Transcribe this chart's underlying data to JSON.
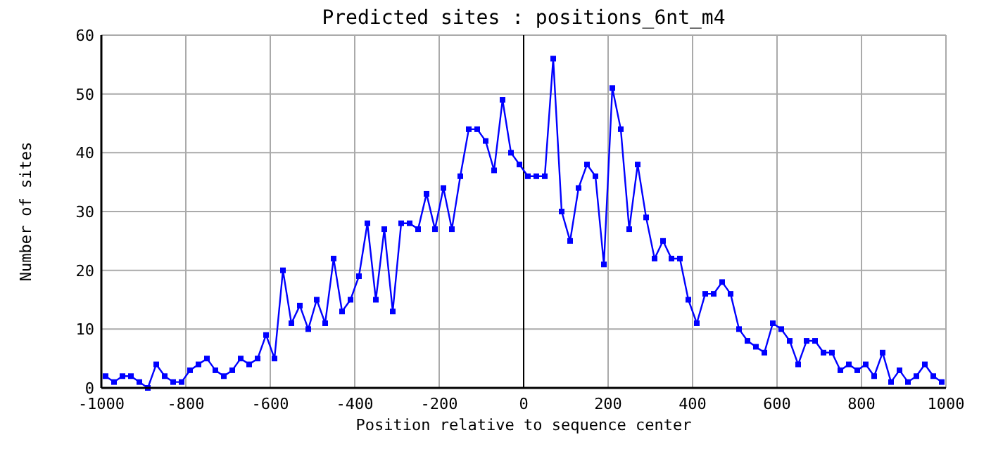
{
  "chart_data": {
    "type": "line",
    "title": "Predicted sites : positions_6nt_m4",
    "xlabel": "Position relative to sequence center",
    "ylabel": "Number of sites",
    "x": [
      -990,
      -970,
      -950,
      -930,
      -910,
      -890,
      -870,
      -850,
      -830,
      -810,
      -790,
      -770,
      -750,
      -730,
      -710,
      -690,
      -670,
      -650,
      -630,
      -610,
      -590,
      -570,
      -550,
      -530,
      -510,
      -490,
      -470,
      -450,
      -430,
      -410,
      -390,
      -370,
      -350,
      -330,
      -310,
      -290,
      -270,
      -250,
      -230,
      -210,
      -190,
      -170,
      -150,
      -130,
      -110,
      -90,
      -70,
      -50,
      -30,
      -10,
      10,
      30,
      50,
      70,
      90,
      110,
      130,
      150,
      170,
      190,
      210,
      230,
      250,
      270,
      290,
      310,
      330,
      350,
      370,
      390,
      410,
      430,
      450,
      470,
      490,
      510,
      530,
      550,
      570,
      590,
      610,
      630,
      650,
      670,
      690,
      710,
      730,
      750,
      770,
      790,
      810,
      830,
      850,
      870,
      890,
      910,
      930,
      950,
      970,
      990
    ],
    "series": [
      {
        "color": "#0000ff",
        "values": [
          2,
          1,
          2,
          2,
          1,
          0,
          4,
          2,
          1,
          1,
          3,
          4,
          5,
          3,
          2,
          3,
          5,
          4,
          5,
          9,
          5,
          20,
          11,
          14,
          10,
          15,
          11,
          22,
          13,
          15,
          19,
          28,
          15,
          27,
          13,
          28,
          28,
          27,
          33,
          27,
          34,
          27,
          36,
          44,
          44,
          42,
          37,
          49,
          40,
          38,
          36,
          36,
          36,
          56,
          30,
          25,
          34,
          38,
          36,
          21,
          51,
          44,
          27,
          38,
          29,
          22,
          25,
          22,
          22,
          15,
          11,
          16,
          16,
          18,
          16,
          10,
          8,
          7,
          6,
          11,
          10,
          8,
          4,
          8,
          8,
          6,
          6,
          3,
          4,
          3,
          4,
          2,
          6,
          1,
          3,
          1,
          2,
          4,
          2,
          1
        ]
      }
    ],
    "xlim": [
      -1000,
      1000
    ],
    "xticks": [
      -1000,
      -800,
      -600,
      -400,
      -200,
      0,
      200,
      400,
      600,
      800,
      1000
    ],
    "ylim": [
      0,
      60
    ],
    "yticks": [
      0,
      10,
      20,
      30,
      40,
      50,
      60
    ],
    "grid": true,
    "marker": "square",
    "line_style": "solid",
    "ref_lines": [
      {
        "axis": "x",
        "value": 0,
        "color": "#000000"
      }
    ]
  }
}
